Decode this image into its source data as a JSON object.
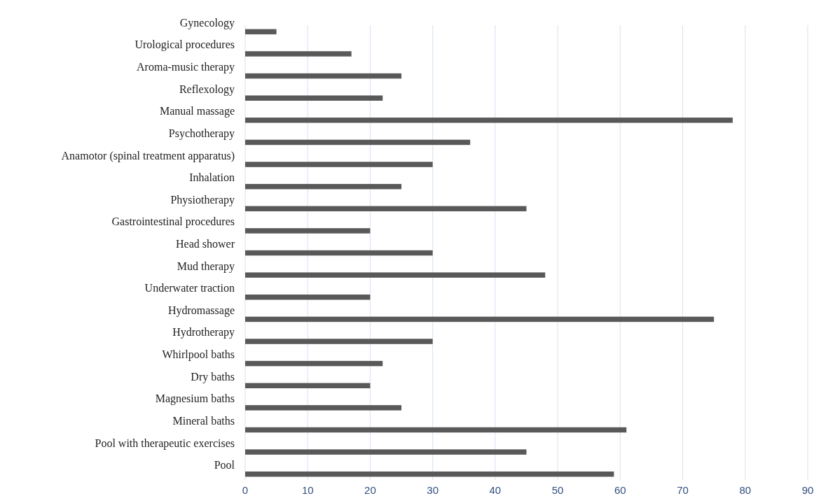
{
  "chart_data": {
    "type": "bar",
    "orientation": "horizontal",
    "categories": [
      "Gynecology",
      "Urological procedures",
      "Aroma-music therapy",
      "Reflexology",
      "Manual massage",
      "Psychotherapy",
      "Anamotor (spinal treatment apparatus)",
      "Inhalation",
      "Physiotherapy",
      "Gastrointestinal procedures",
      "Head shower",
      "Mud therapy",
      "Underwater traction",
      "Hydromassage",
      "Hydrotherapy",
      "Whirlpool baths",
      "Dry baths",
      "Magnesium baths",
      "Mineral baths",
      "Pool with therapeutic exercises",
      "Pool"
    ],
    "values": [
      5,
      17,
      25,
      22,
      78,
      36,
      30,
      25,
      45,
      20,
      30,
      48,
      20,
      75,
      30,
      22,
      20,
      25,
      61,
      45,
      59
    ],
    "color": "#595959",
    "xlim": [
      0,
      90
    ],
    "xticks": [
      0,
      10,
      20,
      30,
      40,
      50,
      60,
      70,
      80,
      90
    ],
    "grid": "x"
  }
}
